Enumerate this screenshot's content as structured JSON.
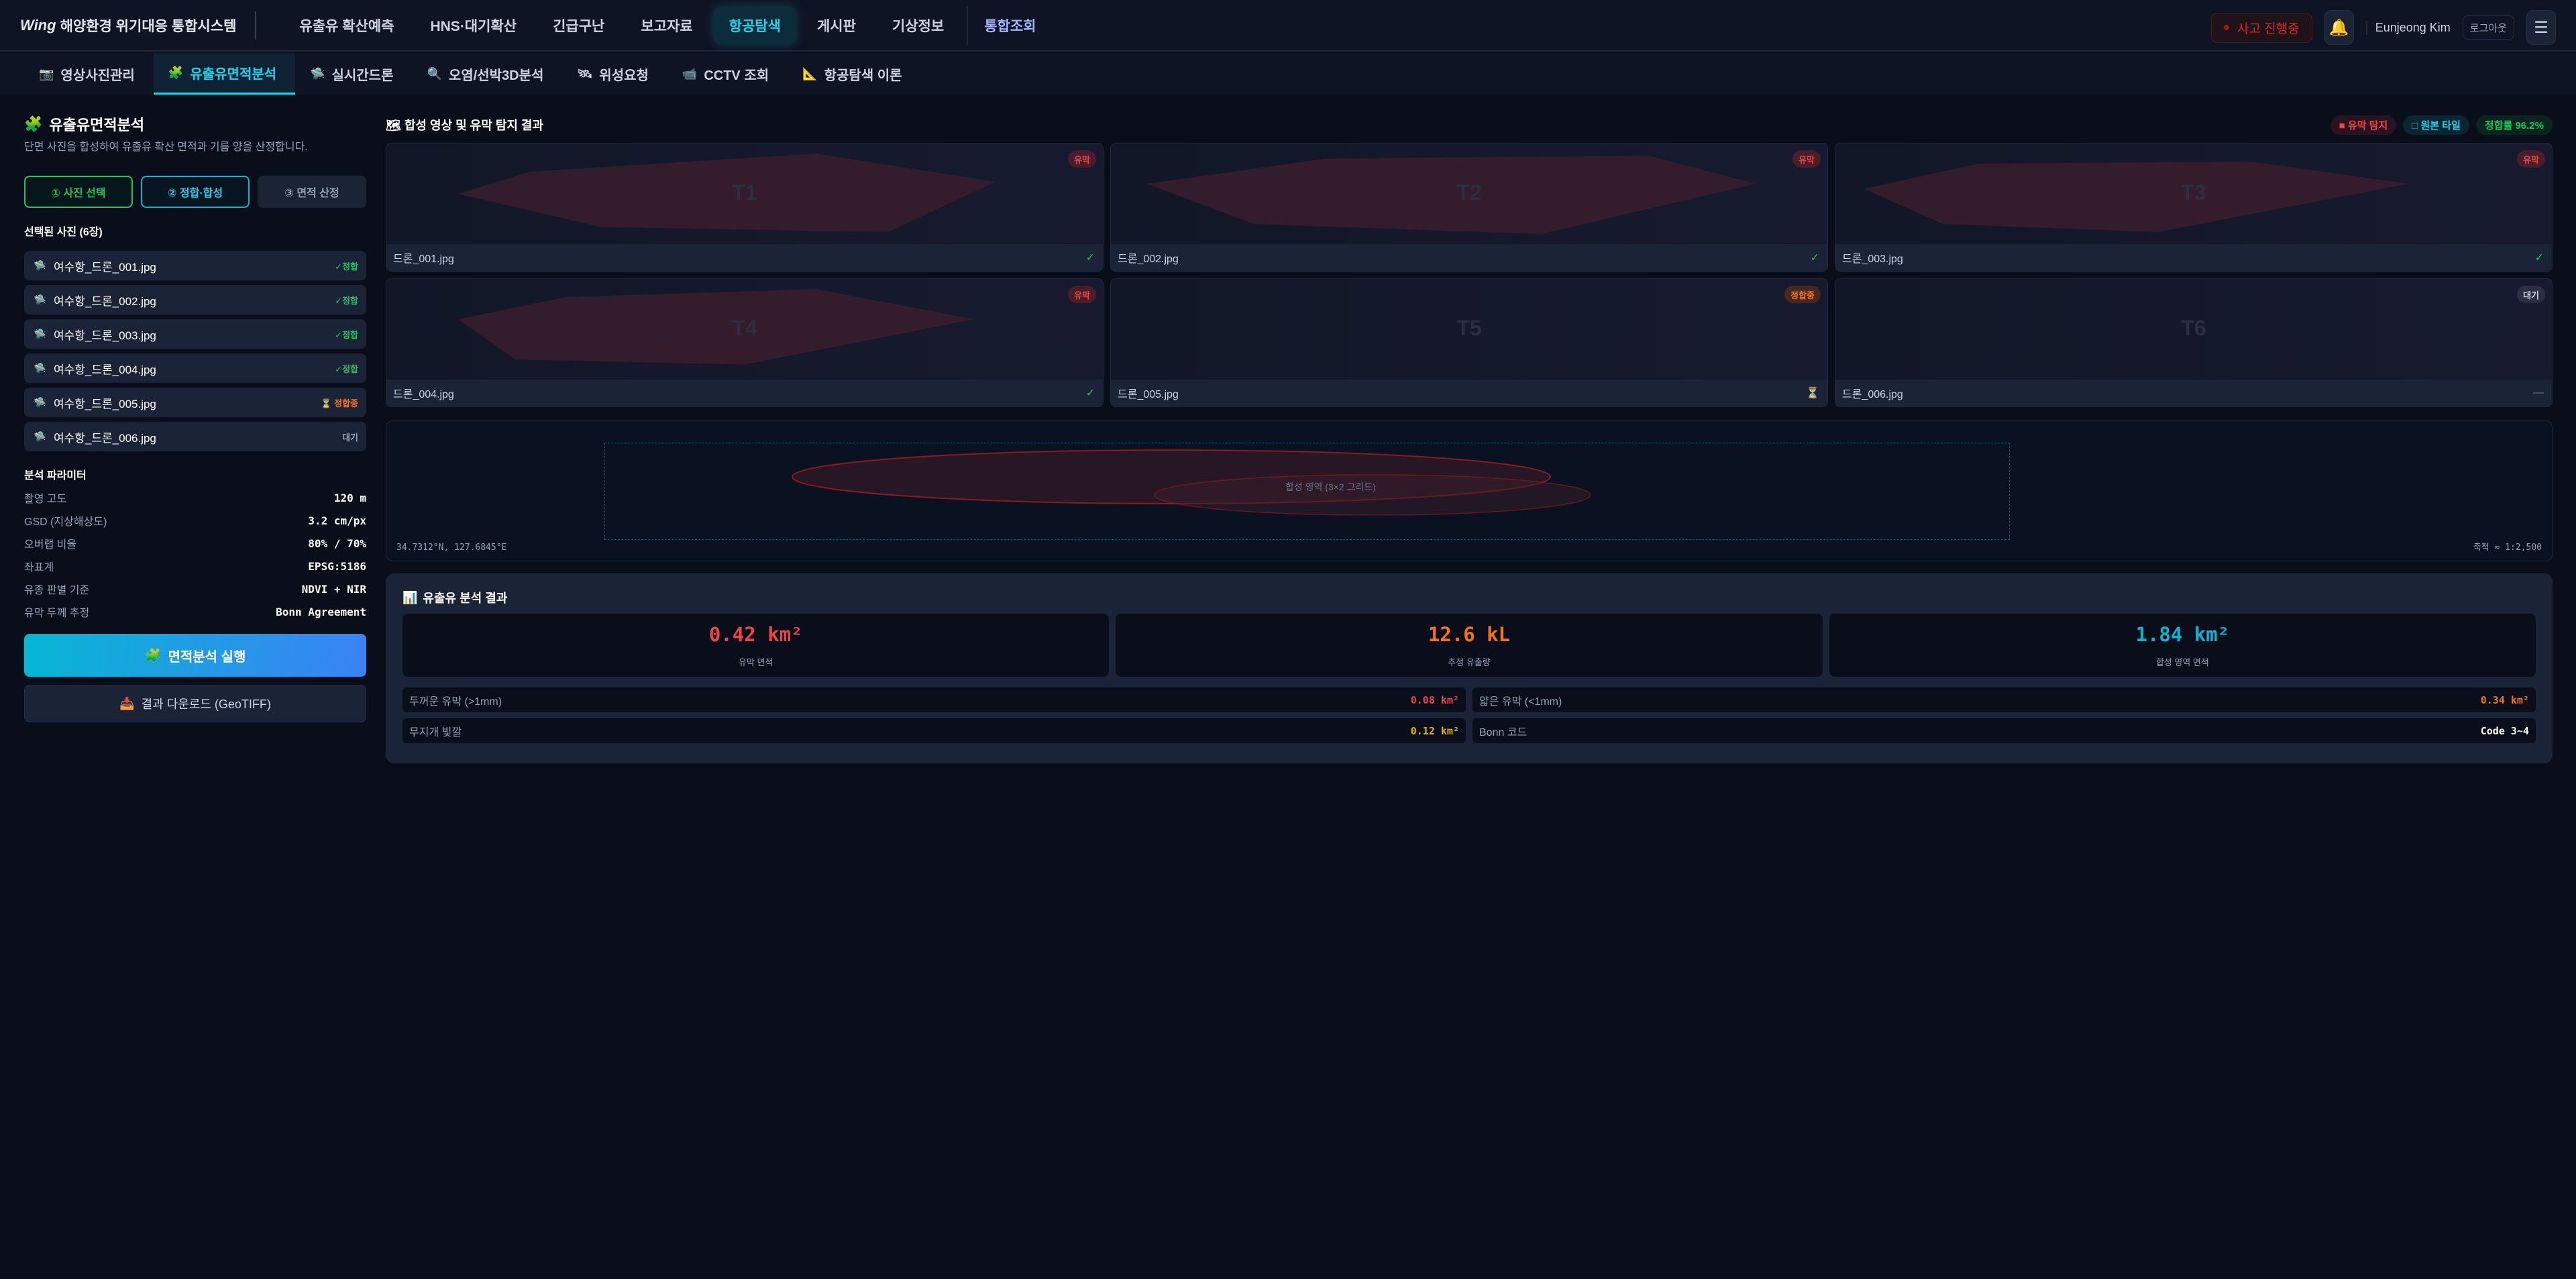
{
  "header": {
    "brand": "Wing",
    "title": "해양환경 위기대응 통합시스템",
    "nav": [
      {
        "label": "유출유 확산예측",
        "active": false
      },
      {
        "label": "HNS·대기확산",
        "active": false
      },
      {
        "label": "긴급구난",
        "active": false
      },
      {
        "label": "보고자료",
        "active": false
      },
      {
        "label": "항공탐색",
        "active": true
      },
      {
        "label": "게시판",
        "active": false
      },
      {
        "label": "기상정보",
        "active": false
      },
      {
        "label": "통합조회",
        "active": false
      }
    ],
    "incident_label": "사고 진행중",
    "user_name": "Eunjeong Kim",
    "logout_label": "로그아웃"
  },
  "subtabs": [
    {
      "label": "영상사진관리",
      "icon": "camera-icon"
    },
    {
      "label": "유출유면적분석",
      "icon": "puzzle-icon",
      "active": true
    },
    {
      "label": "실시간드론",
      "icon": "drone-icon"
    },
    {
      "label": "오염/선박3D분석",
      "icon": "magnifier-icon"
    },
    {
      "label": "위성요청",
      "icon": "satellite-icon"
    },
    {
      "label": "CCTV 조회",
      "icon": "cctv-icon"
    },
    {
      "label": "항공탐색 이론",
      "icon": "triangle-ruler-icon"
    }
  ],
  "left": {
    "title": "유출유면적분석",
    "description": "단면 사진을 합성하여 유출유 확산 면적과 기름 양을 산정합니다.",
    "steps": [
      "① 사진 선택",
      "② 정합·합성",
      "③ 면적 산정"
    ],
    "selected_heading": "선택된 사진 (6장)",
    "photos": [
      {
        "name": "여수항_드론_001.jpg",
        "status": "✓정합",
        "state": "ok"
      },
      {
        "name": "여수항_드론_002.jpg",
        "status": "✓정합",
        "state": "ok"
      },
      {
        "name": "여수항_드론_003.jpg",
        "status": "✓정합",
        "state": "ok"
      },
      {
        "name": "여수항_드론_004.jpg",
        "status": "✓정합",
        "state": "ok"
      },
      {
        "name": "여수항_드론_005.jpg",
        "status": "⏳ 정합중",
        "state": "busy"
      },
      {
        "name": "여수항_드론_006.jpg",
        "status": "대기",
        "state": "wait"
      }
    ],
    "params_heading": "분석 파라미터",
    "params": [
      {
        "label": "촬영 고도",
        "value": "120 m"
      },
      {
        "label": "GSD (지상해상도)",
        "value": "3.2 cm/px"
      },
      {
        "label": "오버랩 비율",
        "value": "80% / 70%"
      },
      {
        "label": "좌표계",
        "value": "EPSG:5186"
      },
      {
        "label": "유종 판별 기준",
        "value": "NDVI + NIR"
      },
      {
        "label": "유막 두께 추정",
        "value": "Bonn Agreement"
      }
    ],
    "run_label": "면적분석 실행",
    "download_label": "결과 다운로드 (GeoTIFF)"
  },
  "right": {
    "title": "합성 영상 및 유막 탐지 결과",
    "legend": [
      {
        "label": "■ 유막 탐지",
        "color": "#ef4444"
      },
      {
        "label": "□ 원본 타일",
        "color": "#22d3ee"
      },
      {
        "label": "정합률 96.2%",
        "color": "#22c55e"
      }
    ],
    "tiles": [
      {
        "label": "T1",
        "file": "드론_001.jpg",
        "badge": "유막",
        "status": "✓"
      },
      {
        "label": "T2",
        "file": "드론_002.jpg",
        "badge": "유막",
        "status": "✓"
      },
      {
        "label": "T3",
        "file": "드론_003.jpg",
        "badge": "유막",
        "status": "✓"
      },
      {
        "label": "T4",
        "file": "드론_004.jpg",
        "badge": "유막",
        "status": "✓"
      },
      {
        "label": "T5",
        "file": "드론_005.jpg",
        "badge": "정합중",
        "status": "⏳"
      },
      {
        "label": "T6",
        "file": "드론_006.jpg",
        "badge": "대기",
        "status": "—"
      }
    ],
    "composite": {
      "area_label": "합성 영역 (3×2 그리드)",
      "coords": "34.7312°N, 127.6845°E",
      "scale": "축척 ≈ 1:2,500"
    },
    "results": {
      "title": "유출유 분석 결과",
      "stats": [
        {
          "value": "0.42 km²",
          "label": "유막 면적",
          "color": "#ef4444"
        },
        {
          "value": "12.6 kL",
          "label": "추정 유출량",
          "color": "#f97316"
        },
        {
          "value": "1.84 km²",
          "label": "합성 영역 면적",
          "color": "#06b6d4"
        }
      ],
      "details": [
        {
          "label": "두꺼운 유막 (>1mm)",
          "value": "0.08 km²",
          "color": "#ef4444"
        },
        {
          "label": "얇은 유막 (<1mm)",
          "value": "0.34 km²",
          "color": "#f97316"
        },
        {
          "label": "무지개 빛깔",
          "value": "0.12 km²",
          "color": "#eab308"
        },
        {
          "label": "Bonn 코드",
          "value": "Code 3~4",
          "color": "#ffffff"
        }
      ]
    }
  }
}
